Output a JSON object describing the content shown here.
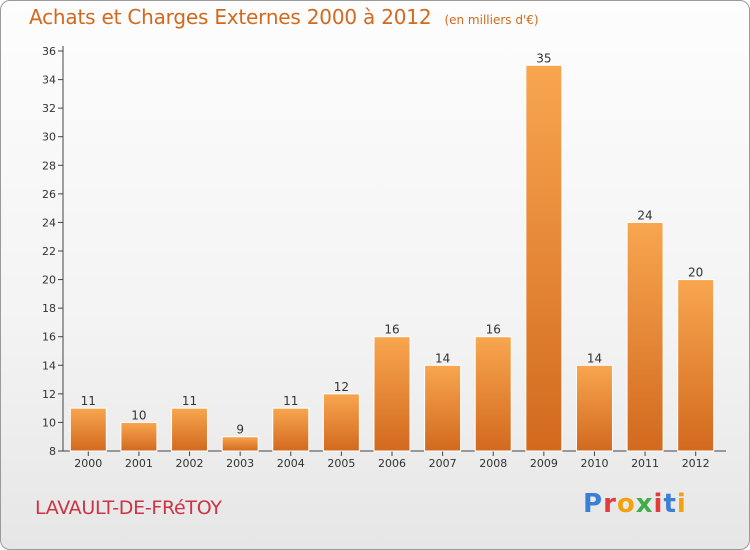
{
  "header": {
    "title": "Achats et Charges Externes 2000 à 2012",
    "subtitle": "(en milliers d'€)"
  },
  "footer": {
    "commune": "LAVAULT-DE-FRéTOY",
    "logo_text": "Proxiti",
    "logo_colors": [
      "#3a7fd5",
      "#e23c3c",
      "#f2a20c",
      "#3fae49",
      "#e23c3c",
      "#3a7fd5",
      "#f2a20c"
    ]
  },
  "chart_data": {
    "type": "bar",
    "title": "Achats et Charges Externes 2000 à 2012",
    "subtitle": "(en milliers d'€)",
    "categories": [
      "2000",
      "2001",
      "2002",
      "2003",
      "2004",
      "2005",
      "2006",
      "2007",
      "2008",
      "2009",
      "2010",
      "2011",
      "2012"
    ],
    "values": [
      11,
      10,
      11,
      9,
      11,
      12,
      16,
      14,
      16,
      35,
      14,
      24,
      20
    ],
    "xlabel": "",
    "ylabel": "",
    "ylim": [
      8,
      36
    ],
    "yticks": [
      8,
      10,
      12,
      14,
      16,
      18,
      20,
      22,
      24,
      26,
      28,
      30,
      32,
      34,
      36
    ],
    "grid": false,
    "data_labels": true,
    "colors": {
      "bar_top": "#f8a64f",
      "bar_bottom": "#d2691e",
      "axis": "#444444",
      "text": "#333333"
    }
  }
}
